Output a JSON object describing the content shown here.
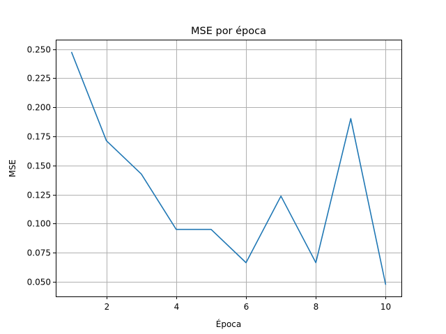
{
  "chart_data": {
    "type": "line",
    "title": "MSE por época",
    "xlabel": "Época",
    "ylabel": "MSE",
    "x": [
      1,
      2,
      3,
      4,
      5,
      6,
      7,
      8,
      9,
      10
    ],
    "series": [
      {
        "values": [
          0.2475,
          0.1713,
          0.1427,
          0.0951,
          0.0951,
          0.0665,
          0.1237,
          0.0665,
          0.1903,
          0.0475
        ],
        "color": "#1f77b4"
      }
    ],
    "xlim": [
      0.55,
      10.45
    ],
    "ylim": [
      0.0375,
      0.2575
    ],
    "xticks": [
      2,
      4,
      6,
      8,
      10
    ],
    "xtick_labels": [
      "2",
      "4",
      "6",
      "8",
      "10"
    ],
    "yticks": [
      0.05,
      0.075,
      0.1,
      0.125,
      0.15,
      0.175,
      0.2,
      0.225,
      0.25
    ],
    "ytick_labels": [
      "0.050",
      "0.075",
      "0.100",
      "0.125",
      "0.150",
      "0.175",
      "0.200",
      "0.225",
      "0.250"
    ],
    "grid": true,
    "legend": false
  }
}
